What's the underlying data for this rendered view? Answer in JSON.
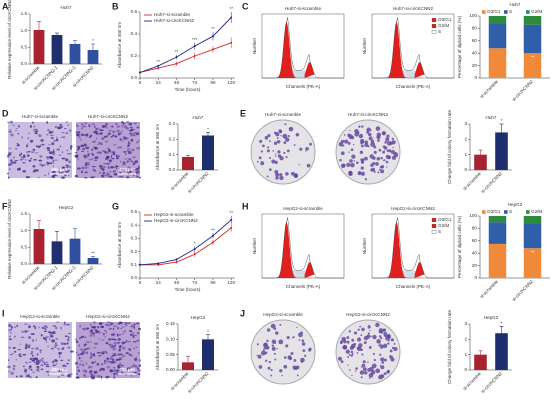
{
  "panel_labels": [
    "A",
    "B",
    "C",
    "D",
    "E",
    "F",
    "G",
    "H",
    "I",
    "J"
  ],
  "chart_data": [
    {
      "type": "bar",
      "title": "Huh7",
      "ylabel": "Relative expression level of circKCNN2",
      "categories": [
        "si-scramble",
        "si-circKCNN2-1",
        "si-circKCNN2-2",
        "si-circKCNN2"
      ],
      "values": [
        1.02,
        0.87,
        0.6,
        0.42
      ],
      "errors": [
        0.25,
        0.06,
        0.1,
        0.18
      ],
      "colors": [
        "#a8232f",
        "#1f2f6e",
        "#2f4fa0",
        "#2f4fa0"
      ],
      "significance": [
        null,
        null,
        null,
        "*"
      ],
      "ylim": [
        0,
        1.5
      ],
      "yticks": [
        {
          "value": 0,
          "label": "0.0"
        },
        0.5,
        {
          "value": 1,
          "label": "1.0"
        },
        1.5
      ]
    },
    {
      "type": "line",
      "xlabel": "Time (hours)",
      "ylabel": "Absorbance at 450 nm",
      "x": [
        0,
        24,
        48,
        72,
        96,
        120
      ],
      "xlim": [
        0,
        125
      ],
      "xticks": [
        0,
        24,
        48,
        72,
        96,
        120
      ],
      "series": [
        {
          "name": "Huh7-si-scramble",
          "color": "#d62728",
          "values": [
            0.05,
            0.09,
            0.13,
            0.2,
            0.26,
            0.32
          ],
          "errors": [
            0.01,
            0.01,
            0.02,
            0.03,
            0.03,
            0.05
          ]
        },
        {
          "name": "Huh7-si-circKCNN2",
          "color": "#1f2a8a",
          "values": [
            0.05,
            0.11,
            0.19,
            0.29,
            0.38,
            0.55
          ],
          "errors": [
            0.01,
            0.01,
            0.02,
            0.03,
            0.04,
            0.05
          ]
        }
      ],
      "significance": [
        null,
        "**",
        "**",
        "***",
        "**",
        "**"
      ],
      "ylim": [
        0,
        0.6
      ],
      "yticks": [
        {
          "value": 0,
          "label": "0.0"
        },
        0.2,
        0.4,
        0.6
      ],
      "legend": "upper left"
    },
    {
      "type": "stacked_bar",
      "title": "Huh7",
      "ylabel": "Percentage of diploid cells (%)",
      "categories": [
        "si-scramble",
        "si-circKCNN2"
      ],
      "series": [
        {
          "name": "G0/G1",
          "color": "#f0893a",
          "values": [
            48,
            40
          ]
        },
        {
          "name": "S",
          "color": "#2f5fa8",
          "values": [
            40,
            46
          ]
        },
        {
          "name": "G2/M",
          "color": "#2e8b3e",
          "values": [
            12,
            14
          ]
        }
      ],
      "significance": [
        null,
        "**"
      ],
      "ylim": [
        0,
        100
      ],
      "yticks": [
        0,
        20,
        40,
        60,
        80,
        100
      ],
      "legend": "top"
    },
    {
      "type": "bar",
      "title": "Huh7",
      "ylabel": "Absorbance at 560 nm",
      "categories": [
        "si-scramble",
        "si-circKCNN2"
      ],
      "values": [
        0.085,
        0.225
      ],
      "errors": [
        0.01,
        0.02
      ],
      "colors": [
        "#a8232f",
        "#1f2f6e"
      ],
      "significance": [
        null,
        "*"
      ],
      "ylim": [
        0,
        0.3
      ],
      "yticks": [
        {
          "value": 0,
          "label": "0.0"
        },
        0.1,
        0.2,
        0.3
      ]
    },
    {
      "type": "bar",
      "title": "Huh7",
      "ylabel": "Change fold of colony formation rate",
      "categories": [
        "si-scramble",
        "si-circKCNN2"
      ],
      "values": [
        1.0,
        2.45
      ],
      "errors": [
        0.3,
        0.55
      ],
      "colors": [
        "#a8232f",
        "#1f2f6e"
      ],
      "significance": [
        null,
        "*"
      ],
      "ylim": [
        0,
        3
      ],
      "yticks": [
        0,
        1,
        2,
        3
      ]
    },
    {
      "type": "bar",
      "title": "HepG2",
      "ylabel": "Relative expression level of circKCNN2",
      "categories": [
        "si-scramble",
        "si-circKCNN2-1",
        "si-circKCNN2-2",
        "si-circKCNN2"
      ],
      "values": [
        1.05,
        0.68,
        0.76,
        0.18
      ],
      "errors": [
        0.25,
        0.3,
        0.3,
        0.05
      ],
      "colors": [
        "#a8232f",
        "#1f2f6e",
        "#2f4fa0",
        "#2f4fa0"
      ],
      "significance": [
        null,
        null,
        null,
        "**"
      ],
      "ylim": [
        0,
        1.5
      ],
      "yticks": [
        {
          "value": 0,
          "label": "0.0"
        },
        0.5,
        {
          "value": 1,
          "label": "1.0"
        },
        1.5
      ]
    },
    {
      "type": "line",
      "xlabel": "Time (hours)",
      "ylabel": "Absorbance at 450 nm",
      "x": [
        0,
        24,
        48,
        72,
        96,
        120
      ],
      "xlim": [
        0,
        125
      ],
      "xticks": [
        0,
        24,
        48,
        72,
        96,
        120
      ],
      "series": [
        {
          "name": "HepG2-si-scramble",
          "color": "#d62728",
          "values": [
            0.1,
            0.1,
            0.12,
            0.18,
            0.27,
            0.38
          ],
          "errors": [
            0.01,
            0.01,
            0.01,
            0.02,
            0.02,
            0.03
          ]
        },
        {
          "name": "HepG2-si-circKCNN2",
          "color": "#1f2a8a",
          "values": [
            0.1,
            0.11,
            0.14,
            0.22,
            0.32,
            0.44
          ],
          "errors": [
            0.01,
            0.01,
            0.01,
            0.02,
            0.02,
            0.03
          ]
        }
      ],
      "significance": [
        null,
        null,
        null,
        "*",
        "**",
        "**"
      ],
      "ylim": [
        0,
        0.5
      ],
      "yticks": [
        {
          "value": 0,
          "label": "0.0"
        },
        0.1,
        0.2,
        0.3,
        0.4,
        0.5
      ],
      "legend": "upper left"
    },
    {
      "type": "stacked_bar",
      "title": "HepG2",
      "ylabel": "Percentage of diploid cells (%)",
      "categories": [
        "si-scramble",
        "si-circKCNN2"
      ],
      "series": [
        {
          "name": "G0/G1",
          "color": "#f0893a",
          "values": [
            55,
            48
          ]
        },
        {
          "name": "S",
          "color": "#2f5fa8",
          "values": [
            35,
            40
          ]
        },
        {
          "name": "G2/M",
          "color": "#2e8b3e",
          "values": [
            10,
            12
          ]
        }
      ],
      "significance": [
        null,
        "**"
      ],
      "ylim": [
        0,
        100
      ],
      "yticks": [
        0,
        20,
        40,
        60,
        80,
        100
      ],
      "legend": "top"
    },
    {
      "type": "bar",
      "title": "HepG2",
      "ylabel": "Absorbance at 560 nm",
      "categories": [
        "si-scramble",
        "si-circKCNN2"
      ],
      "values": [
        0.025,
        0.1
      ],
      "errors": [
        0.02,
        0.015
      ],
      "colors": [
        "#a8232f",
        "#1f2f6e"
      ],
      "significance": [
        null,
        "*"
      ],
      "ylim": [
        0,
        0.15
      ],
      "yticks": [
        {
          "value": 0,
          "label": "0.00"
        },
        0.05,
        {
          "value": 0.1,
          "label": "0.10"
        },
        0.15
      ]
    },
    {
      "type": "bar",
      "title": "HepG2",
      "ylabel": "Change fold of colony formation rate",
      "categories": [
        "si-scramble",
        "si-circKCNN2"
      ],
      "values": [
        1.0,
        2.4
      ],
      "errors": [
        0.25,
        0.45
      ],
      "colors": [
        "#a8232f",
        "#1f2f6e"
      ],
      "significance": [
        null,
        "*"
      ],
      "ylim": [
        0,
        3
      ],
      "yticks": [
        0,
        1,
        2,
        3
      ]
    }
  ],
  "images": [
    {
      "kind": "flow",
      "title": "Huh7-si-scramble",
      "xlabel": "Channels (PE-A)",
      "ylabel": "Number"
    },
    {
      "kind": "flow",
      "title": "Huh7-si-circKCNN2",
      "xlabel": "Channels (PE-A)",
      "ylabel": "Number",
      "legend": [
        "G0/G1",
        "G2/M",
        "S"
      ]
    },
    {
      "kind": "invasion",
      "title": "Huh7-si-scramble",
      "scale": "400 μm"
    },
    {
      "kind": "invasion",
      "title": "Huh7-si-circKCNN2",
      "scale": "400 μm"
    },
    {
      "kind": "colony",
      "title": "Huh7-si-scramble"
    },
    {
      "kind": "colony",
      "title": "Huh7-si-circKCNN2"
    },
    {
      "kind": "flow",
      "title": "HepG2-si-scramble",
      "xlabel": "Channels (PE-A)",
      "ylabel": "Number"
    },
    {
      "kind": "flow",
      "title": "HepG2-si-circKCNN2",
      "xlabel": "Channels (PE-A)",
      "ylabel": "Number",
      "legend": [
        "G0/G1",
        "G2/M",
        "S"
      ]
    },
    {
      "kind": "invasion",
      "title": "HepG2-si-scramble",
      "scale": "400 μm"
    },
    {
      "kind": "invasion",
      "title": "HepG2-si-circKCNN2",
      "scale": "400 μm"
    },
    {
      "kind": "colony",
      "title": "HepG2-si-scramble"
    },
    {
      "kind": "colony",
      "title": "HepG2-si-circKCNN2"
    }
  ]
}
